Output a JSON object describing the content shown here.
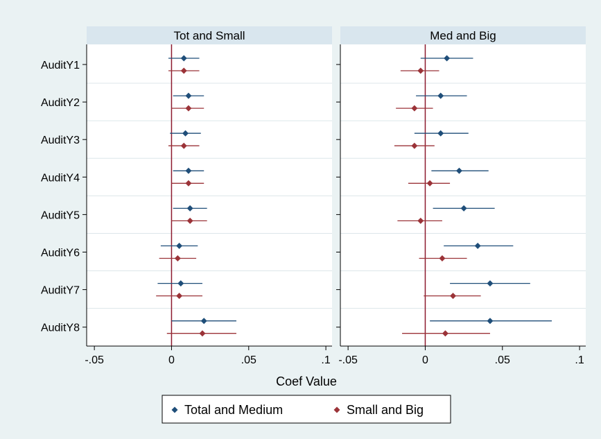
{
  "chart_data": {
    "type": "scatter",
    "subtype": "coefficient-plot",
    "x_label": "Coef Value",
    "categories": [
      "AuditY1",
      "AuditY2",
      "AuditY3",
      "AuditY4",
      "AuditY5",
      "AuditY6",
      "AuditY7",
      "AuditY8"
    ],
    "x_ticks": [
      -0.05,
      0,
      0.05,
      0.1
    ],
    "x_tick_labels": [
      "-.05",
      "0",
      ".05",
      ".1"
    ],
    "xlim": [
      -0.055,
      0.104
    ],
    "reference_line_x": 0,
    "grid": "horizontal",
    "legend_position": "bottom",
    "legend": [
      {
        "label": "Total and Medium",
        "color": "#1f4e79"
      },
      {
        "label": "Small and Big",
        "color": "#9b3338"
      }
    ],
    "colors": {
      "background": "#eaf2f3",
      "strip": "#d9e6ee",
      "plot_area": "#ffffff",
      "grid": "#dce6ea",
      "reference_line": "#8c1a2e"
    },
    "panels": [
      {
        "title": "Tot and Small",
        "series": [
          {
            "name": "Total and Medium",
            "estimate": [
              0.008,
              0.011,
              0.009,
              0.011,
              0.012,
              0.005,
              0.006,
              0.021
            ],
            "ci_low": [
              -0.002,
              0.001,
              -0.001,
              0.001,
              0.001,
              -0.007,
              -0.009,
              0.0
            ],
            "ci_high": [
              0.018,
              0.021,
              0.019,
              0.021,
              0.023,
              0.017,
              0.02,
              0.042
            ]
          },
          {
            "name": "Small and Big",
            "estimate": [
              0.008,
              0.011,
              0.008,
              0.011,
              0.012,
              0.004,
              0.005,
              0.02
            ],
            "ci_low": [
              -0.002,
              0.0,
              -0.002,
              0.0,
              0.0,
              -0.008,
              -0.01,
              -0.003
            ],
            "ci_high": [
              0.018,
              0.021,
              0.018,
              0.021,
              0.023,
              0.016,
              0.02,
              0.042
            ]
          }
        ]
      },
      {
        "title": "Med and Big",
        "series": [
          {
            "name": "Total and Medium",
            "estimate": [
              0.014,
              0.01,
              0.01,
              0.022,
              0.025,
              0.034,
              0.042,
              0.042
            ],
            "ci_low": [
              -0.003,
              -0.006,
              -0.007,
              0.004,
              0.005,
              0.012,
              0.016,
              0.003
            ],
            "ci_high": [
              0.031,
              0.027,
              0.028,
              0.041,
              0.045,
              0.057,
              0.068,
              0.082
            ]
          },
          {
            "name": "Small and Big",
            "estimate": [
              -0.003,
              -0.007,
              -0.007,
              0.003,
              -0.003,
              0.011,
              0.018,
              0.013
            ],
            "ci_low": [
              -0.016,
              -0.019,
              -0.02,
              -0.011,
              -0.018,
              -0.004,
              -0.001,
              -0.015
            ],
            "ci_high": [
              0.009,
              0.005,
              0.006,
              0.016,
              0.011,
              0.027,
              0.036,
              0.042
            ]
          }
        ]
      }
    ]
  }
}
